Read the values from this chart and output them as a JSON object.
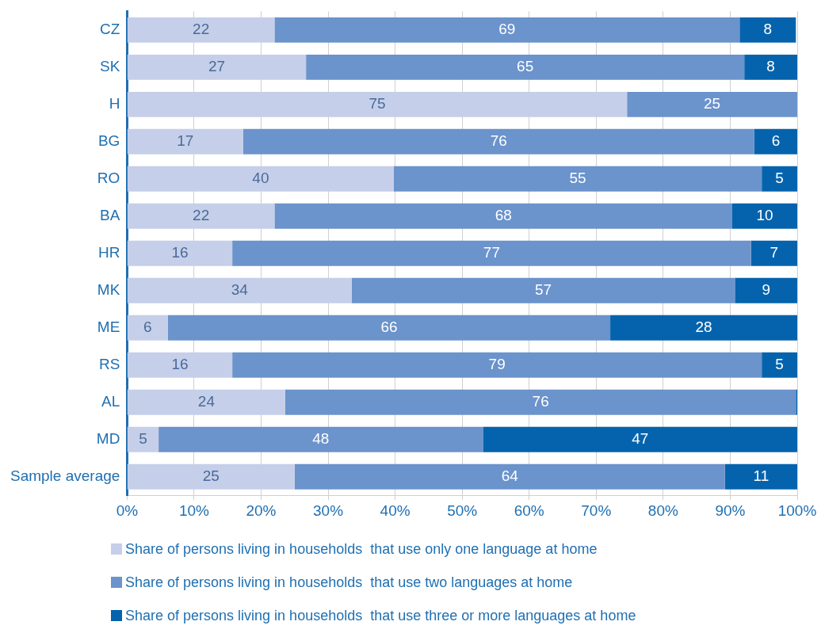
{
  "chart_data": {
    "type": "bar",
    "orientation": "horizontal",
    "stacked": true,
    "categories": [
      "CZ",
      "SK",
      "H",
      "BG",
      "RO",
      "BA",
      "HR",
      "MK",
      "ME",
      "RS",
      "AL",
      "MD",
      "Sample average"
    ],
    "series": [
      {
        "name": "Share of persons living in households  that use only one language at home",
        "color": "#c5cfe9",
        "values": [
          22,
          26.7,
          74.6,
          17.3,
          39.8,
          22,
          15.7,
          33.5,
          6.1,
          15.7,
          23.6,
          4.7,
          25
        ],
        "value_labels": [
          "22",
          "27",
          "75",
          "17",
          "40",
          "22",
          "16",
          "34",
          "6",
          "16",
          "24",
          "5",
          "25"
        ]
      },
      {
        "name": "Share of persons living in households  that use two languages at home",
        "color": "#6b93cc",
        "values": [
          69.4,
          65.4,
          25.4,
          76.3,
          54.9,
          68.3,
          77.4,
          57.2,
          66,
          79,
          76.2,
          48.4,
          64.2
        ],
        "value_labels": [
          "69",
          "65",
          "25",
          "76",
          "55",
          "68",
          "77",
          "57",
          "66",
          "79",
          "76",
          "48",
          "64"
        ]
      },
      {
        "name": "Share of persons living in households  that use three or more languages at home",
        "color": "#0563ad",
        "values": [
          8.4,
          7.9,
          null,
          6.4,
          5.3,
          9.7,
          6.9,
          9.3,
          27.9,
          5.3,
          0.2,
          46.9,
          10.8
        ],
        "value_labels": [
          "8",
          "8",
          null,
          "6",
          "5",
          "10",
          "7",
          "9",
          "28",
          "5",
          null,
          "47",
          "11"
        ]
      }
    ],
    "xlim": [
      0,
      100
    ],
    "xticks": [
      {
        "value": 0,
        "label": "0%"
      },
      {
        "value": 10,
        "label": "10%"
      },
      {
        "value": 20,
        "label": "20%"
      },
      {
        "value": 30,
        "label": "30%"
      },
      {
        "value": 40,
        "label": "40%"
      },
      {
        "value": 50,
        "label": "50%"
      },
      {
        "value": 60,
        "label": "60%"
      },
      {
        "value": 70,
        "label": "70%"
      },
      {
        "value": 80,
        "label": "80%"
      },
      {
        "value": 90,
        "label": "90%"
      },
      {
        "value": 100,
        "label": "100%"
      }
    ],
    "grid": "x",
    "legend": "bottom"
  }
}
